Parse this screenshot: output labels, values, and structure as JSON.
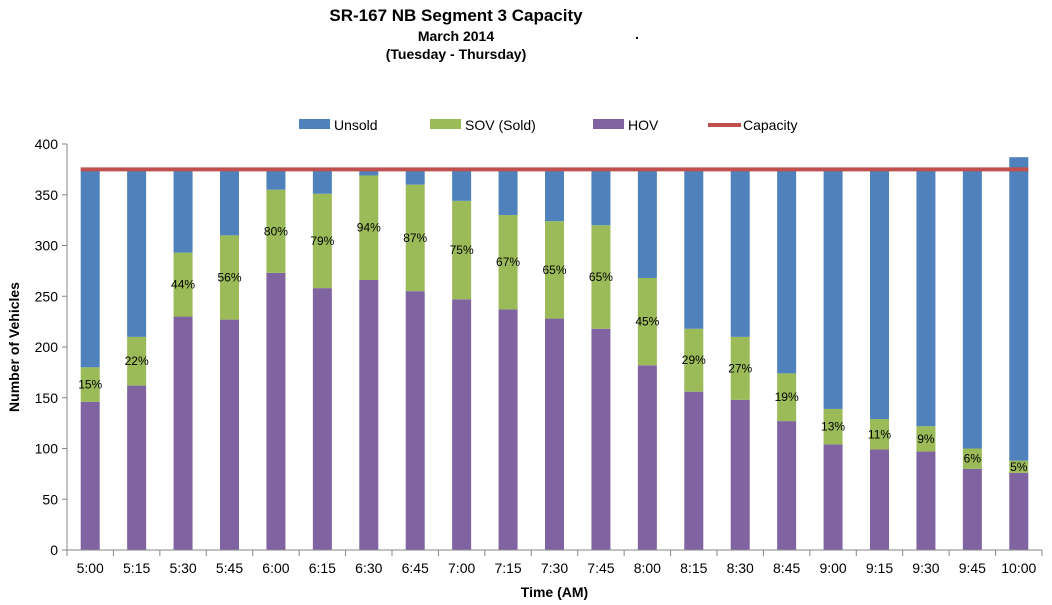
{
  "chart_data": {
    "type": "bar",
    "stacked": true,
    "title": "SR-167 NB Segment 3 Capacity",
    "subtitle_lines": [
      "March 2014",
      "(Tuesday - Thursday)"
    ],
    "stray_mark": ".",
    "xlabel": "Time (AM)",
    "ylabel": "Number of Vehicles",
    "ylim": [
      0,
      400
    ],
    "yticks": [
      0,
      50,
      100,
      150,
      200,
      250,
      300,
      350,
      400
    ],
    "grid": false,
    "legend_position": "top",
    "categories": [
      "5:00",
      "5:15",
      "5:30",
      "5:45",
      "6:00",
      "6:15",
      "6:30",
      "6:45",
      "7:00",
      "7:15",
      "7:30",
      "7:45",
      "8:00",
      "8:15",
      "8:30",
      "8:45",
      "9:00",
      "9:15",
      "9:30",
      "9:45",
      "10:00"
    ],
    "series": [
      {
        "name": "Unsold",
        "color": "#4F81BD",
        "values": [
          195,
          165,
          82,
          65,
          20,
          24,
          6,
          15,
          31,
          45,
          51,
          55,
          107,
          157,
          165,
          201,
          236,
          246,
          253,
          275,
          299
        ]
      },
      {
        "name": "SOV (Sold)",
        "color": "#9BBB59",
        "values": [
          34,
          48,
          63,
          83,
          82,
          93,
          103,
          105,
          97,
          93,
          96,
          102,
          86,
          62,
          62,
          47,
          35,
          30,
          25,
          20,
          12
        ],
        "data_labels": [
          "15%",
          "22%",
          "44%",
          "56%",
          "80%",
          "79%",
          "94%",
          "87%",
          "75%",
          "67%",
          "65%",
          "65%",
          "45%",
          "29%",
          "27%",
          "19%",
          "13%",
          "11%",
          "9%",
          "6%",
          "5%"
        ]
      },
      {
        "name": "HOV",
        "color": "#8064A2",
        "values": [
          146,
          162,
          230,
          227,
          273,
          258,
          266,
          255,
          247,
          237,
          228,
          218,
          182,
          156,
          148,
          127,
          104,
          99,
          97,
          80,
          76
        ]
      },
      {
        "name": "Capacity",
        "type": "line",
        "color": "#C0504D",
        "value": 375
      }
    ]
  }
}
